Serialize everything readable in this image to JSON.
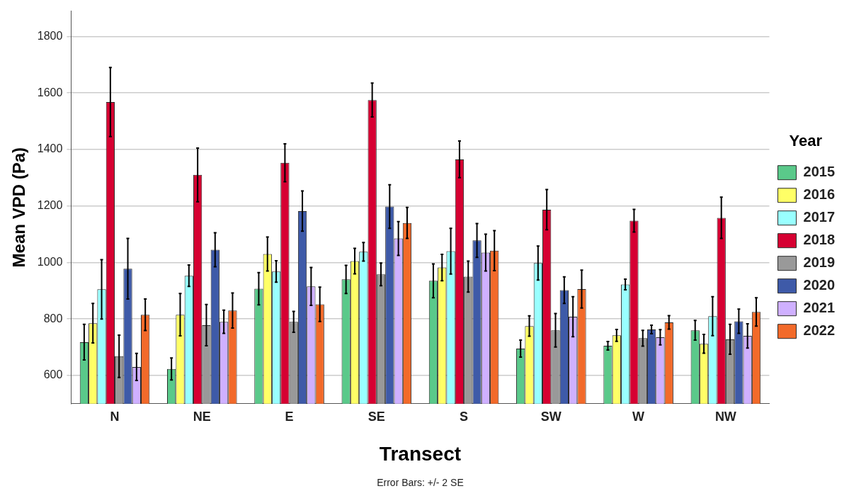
{
  "chart_data": {
    "type": "bar",
    "xlabel": "Transect",
    "ylabel": "Mean VPD (Pa)",
    "legend_title": "Year",
    "legend": "right",
    "grid": "y",
    "categories": [
      "N",
      "NE",
      "E",
      "SE",
      "S",
      "SW",
      "W",
      "NW"
    ],
    "ylim": [
      500,
      1890
    ],
    "yticks": [
      600,
      800,
      1000,
      1200,
      1400,
      1600,
      1800
    ],
    "annotations": [
      "Error Bars: +/- 2 SE"
    ],
    "series": [
      {
        "name": "2015",
        "color": "#5ac98a",
        "values": [
          718,
          623,
          907,
          940,
          935,
          695,
          705,
          760
        ],
        "errors": [
          63,
          39,
          57,
          50,
          60,
          30,
          15,
          35
        ]
      },
      {
        "name": "2016",
        "color": "#ffff66",
        "values": [
          785,
          815,
          1030,
          1005,
          982,
          775,
          742,
          712
        ],
        "errors": [
          70,
          75,
          60,
          45,
          47,
          36,
          21,
          33
        ]
      },
      {
        "name": "2017",
        "color": "#99ffff",
        "values": [
          905,
          953,
          968,
          1038,
          1040,
          998,
          922,
          810
        ],
        "errors": [
          105,
          38,
          38,
          33,
          81,
          60,
          19,
          69
        ]
      },
      {
        "name": "2018",
        "color": "#d60032",
        "values": [
          1568,
          1310,
          1353,
          1575,
          1365,
          1187,
          1148,
          1158
        ],
        "errors": [
          122,
          95,
          67,
          60,
          65,
          71,
          40,
          73
        ]
      },
      {
        "name": "2019",
        "color": "#999999",
        "values": [
          668,
          778,
          790,
          958,
          950,
          760,
          732,
          728
        ],
        "errors": [
          75,
          73,
          37,
          40,
          55,
          59,
          28,
          53
        ]
      },
      {
        "name": "2020",
        "color": "#3e5aa8",
        "values": [
          978,
          1045,
          1182,
          1198,
          1078,
          902,
          763,
          792
        ],
        "errors": [
          107,
          60,
          71,
          77,
          60,
          47,
          15,
          43
        ]
      },
      {
        "name": "2021",
        "color": "#cfb0ff",
        "values": [
          630,
          790,
          915,
          1085,
          1035,
          808,
          735,
          740
        ],
        "errors": [
          48,
          41,
          67,
          60,
          65,
          71,
          27,
          43
        ]
      },
      {
        "name": "2022",
        "color": "#f26a2a",
        "values": [
          815,
          830,
          852,
          1140,
          1042,
          906,
          788,
          825
        ],
        "errors": [
          56,
          62,
          61,
          55,
          71,
          67,
          24,
          50
        ]
      }
    ]
  }
}
